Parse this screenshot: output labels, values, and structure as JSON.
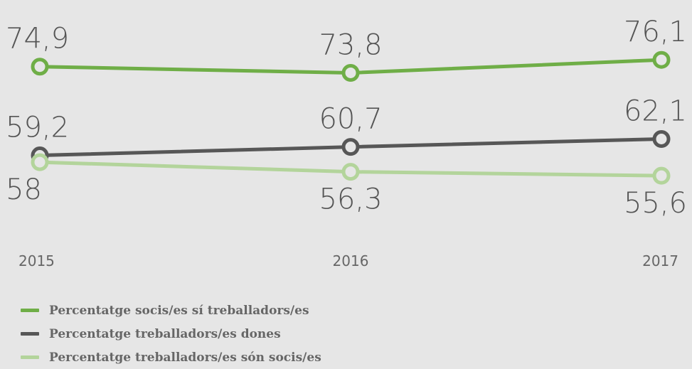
{
  "chart_data": {
    "type": "line",
    "x": [
      "2015",
      "2016",
      "2017"
    ],
    "series": [
      {
        "name": "Percentatge socis/es sí treballadors/es",
        "values": [
          74.9,
          73.8,
          76.1
        ],
        "labels": [
          "74,9",
          "73,8",
          "76,1"
        ],
        "color": "#6fae47",
        "label_position": "above"
      },
      {
        "name": "Percentatge treballadors/es dones",
        "values": [
          59.2,
          60.7,
          62.1
        ],
        "labels": [
          "59,2",
          "60,7",
          "62,1"
        ],
        "color": "#575757",
        "label_position": "above"
      },
      {
        "name": "Percentatge treballadors/es són socis/es",
        "values": [
          58,
          56.3,
          55.6
        ],
        "labels": [
          "58",
          "56,3",
          "55,6"
        ],
        "color": "#b3d49b",
        "label_position": "below"
      }
    ],
    "legend_placement": "bottom-left",
    "grid": false
  }
}
